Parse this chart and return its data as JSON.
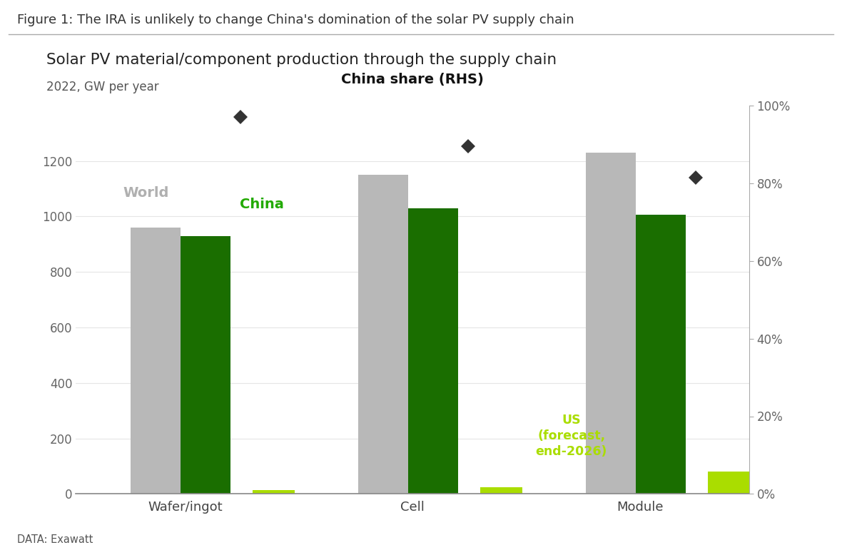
{
  "figure_title": "Figure 1: The IRA is unlikely to change China's domination of the solar PV supply chain",
  "chart_title": "Solar PV material/component production through the supply chain",
  "chart_subtitle": "2022, GW per year",
  "data_source": "DATA: Exawatt",
  "categories": [
    "Wafer/ingot",
    "Cell",
    "Module"
  ],
  "world_values": [
    960,
    1150,
    1230
  ],
  "china_values": [
    930,
    1030,
    1005
  ],
  "us_values": [
    15,
    25,
    80
  ],
  "china_share_pct": [
    0.97,
    0.895,
    0.815
  ],
  "color_world": "#b8b8b8",
  "color_china": "#1a6e00",
  "color_us": "#aadd00",
  "color_diamond": "#333333",
  "ylim_left": [
    0,
    1400
  ],
  "ylim_right": [
    0,
    1.0
  ],
  "yticks_left": [
    0,
    200,
    400,
    600,
    800,
    1000,
    1200
  ],
  "yticks_right": [
    0.0,
    0.2,
    0.4,
    0.6,
    0.8,
    1.0
  ],
  "ytick_right_labels": [
    "0%",
    "20%",
    "40%",
    "60%",
    "80%",
    "100%"
  ],
  "label_world": "World",
  "label_china": "China",
  "label_us": "US\n(forecast,\nend-2026)",
  "rhs_label": "China share (RHS)",
  "background_color": "#ffffff"
}
